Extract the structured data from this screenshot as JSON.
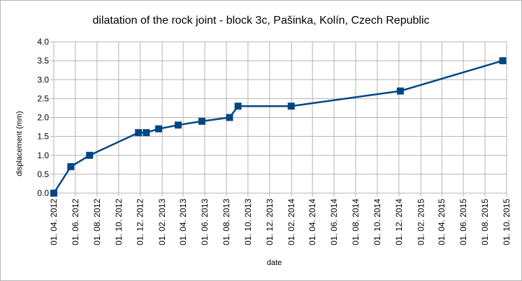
{
  "chart_data": {
    "type": "line",
    "title": "dilatation of the rock joint - block 3c, Pašinka, Kolín, Czech Republic",
    "xlabel": "date",
    "ylabel": "displacement (mm)",
    "ylim": [
      0,
      4
    ],
    "y_ticks": [
      "0.0",
      "0.5",
      "1.0",
      "1.5",
      "2.0",
      "2.5",
      "3.0",
      "3.5",
      "4.0"
    ],
    "x_ticks": [
      "01. 04. 2012",
      "01. 06. 2012",
      "01. 08. 2012",
      "01. 10. 2012",
      "01. 12. 2012",
      "01. 02. 2013",
      "01. 04. 2013",
      "01. 06. 2013",
      "01. 08. 2013",
      "01. 10. 2013",
      "01. 12. 2013",
      "01. 02. 2014",
      "01. 04. 2014",
      "01. 06. 2014",
      "01. 08. 2014",
      "01. 10. 2014",
      "01. 12. 2014",
      "01. 02. 2015",
      "01. 04. 2015",
      "01. 06. 2015",
      "01. 08. 2015",
      "01. 10. 2015"
    ],
    "xlim": [
      "2012-04-01",
      "2015-10-01"
    ],
    "grid": true,
    "line_color": "#004586",
    "series": [
      {
        "x": [
          "2012-04-01",
          "2012-05-19",
          "2012-07-11",
          "2012-11-26",
          "2012-12-18",
          "2013-01-22",
          "2013-03-18",
          "2013-05-24",
          "2013-08-10",
          "2013-09-03",
          "2014-01-31",
          "2014-12-05",
          "2015-09-20"
        ],
        "values": [
          0,
          0.7,
          1.0,
          1.6,
          1.6,
          1.7,
          1.8,
          1.9,
          2.0,
          2.3,
          2.3,
          2.7,
          3.5
        ]
      }
    ]
  }
}
